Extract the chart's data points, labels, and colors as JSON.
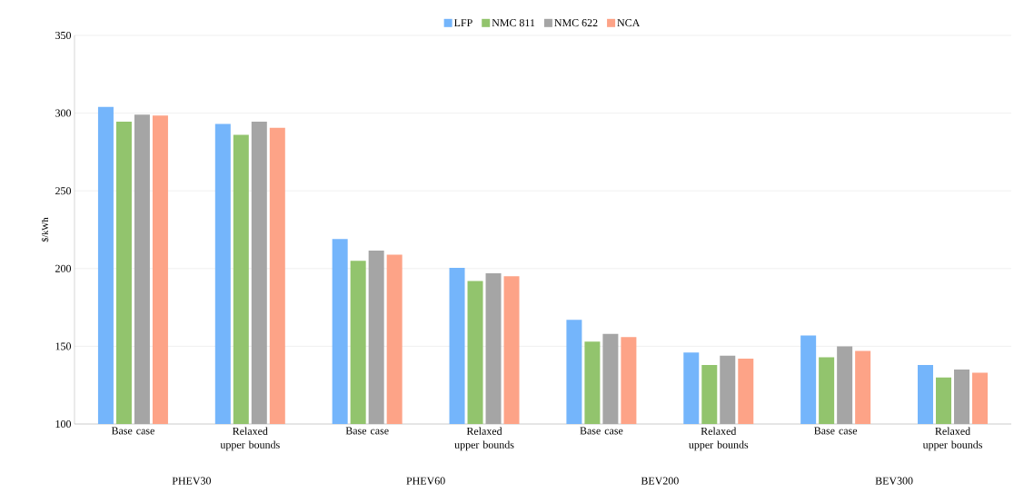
{
  "chart_data": {
    "type": "bar",
    "ylabel": "$/kWh",
    "categories": [
      "Base case",
      "Relaxed upper bounds",
      "Base case",
      "Relaxed upper bounds",
      "Base case",
      "Relaxed upper bounds",
      "Base case",
      "Relaxed upper bounds"
    ],
    "annotations": [
      "PHEV30",
      "PHEV60",
      "BEV200",
      "BEV300"
    ],
    "series": [
      {
        "name": "LFP",
        "color": "#74b5fb",
        "values": [
          304,
          293,
          219,
          200.5,
          167,
          146,
          157,
          138
        ]
      },
      {
        "name": "NMC 811",
        "color": "#92c46d",
        "values": [
          294.5,
          286,
          205,
          192,
          153,
          138,
          143,
          130
        ]
      },
      {
        "name": "NMC 622",
        "color": "#a5a5a5",
        "values": [
          299,
          294.5,
          211.5,
          197,
          158,
          144,
          150,
          135
        ]
      },
      {
        "name": "NCA",
        "color": "#fda387",
        "values": [
          298.5,
          290.5,
          209,
          195,
          156,
          142,
          147,
          133
        ]
      }
    ],
    "ylim": [
      100,
      350
    ],
    "yticks": [
      100,
      150,
      200,
      250,
      300,
      350
    ],
    "grid": "y",
    "legend": "top"
  }
}
